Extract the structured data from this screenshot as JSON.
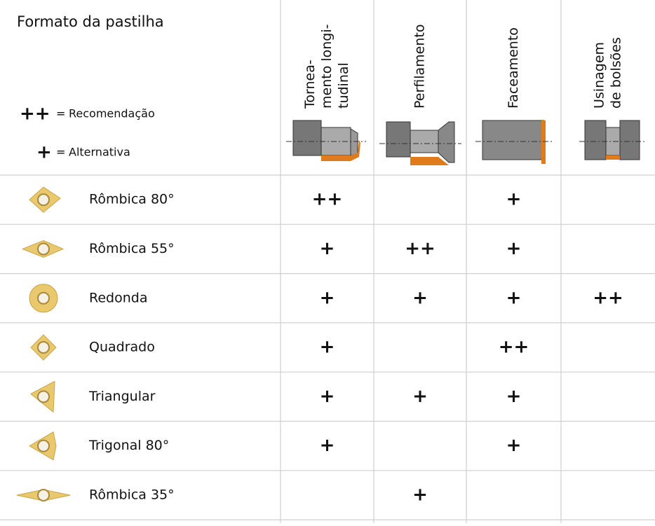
{
  "header": {
    "title": "Formato da pastilha",
    "legend": [
      {
        "symbol": "++",
        "equals": "=",
        "label": "Recomendação"
      },
      {
        "symbol": "+",
        "equals": "=",
        "label": "Alternativa"
      }
    ],
    "columns": [
      [
        "Tornea-",
        "mento longi-",
        "tudinal"
      ],
      [
        "Perfilamento"
      ],
      [
        "Faceamento"
      ],
      [
        "Usinagem",
        "de bolsões"
      ]
    ]
  },
  "table": {
    "rows": [
      {
        "name": "Rômbica 80°",
        "cells": [
          "++",
          null,
          "+",
          null
        ]
      },
      {
        "name": "Rômbica 55°",
        "cells": [
          "+",
          "++",
          "+",
          null
        ]
      },
      {
        "name": "Redonda",
        "cells": [
          "+",
          "+",
          "+",
          "++"
        ]
      },
      {
        "name": "Quadrado",
        "cells": [
          "+",
          null,
          "++",
          null
        ]
      },
      {
        "name": "Triangular",
        "cells": [
          "+",
          "+",
          "+",
          null
        ]
      },
      {
        "name": "Trigonal 80°",
        "cells": [
          "+",
          null,
          "+",
          null
        ]
      },
      {
        "name": "Rômbica 35°",
        "cells": [
          null,
          "+",
          null,
          null
        ]
      }
    ]
  }
}
